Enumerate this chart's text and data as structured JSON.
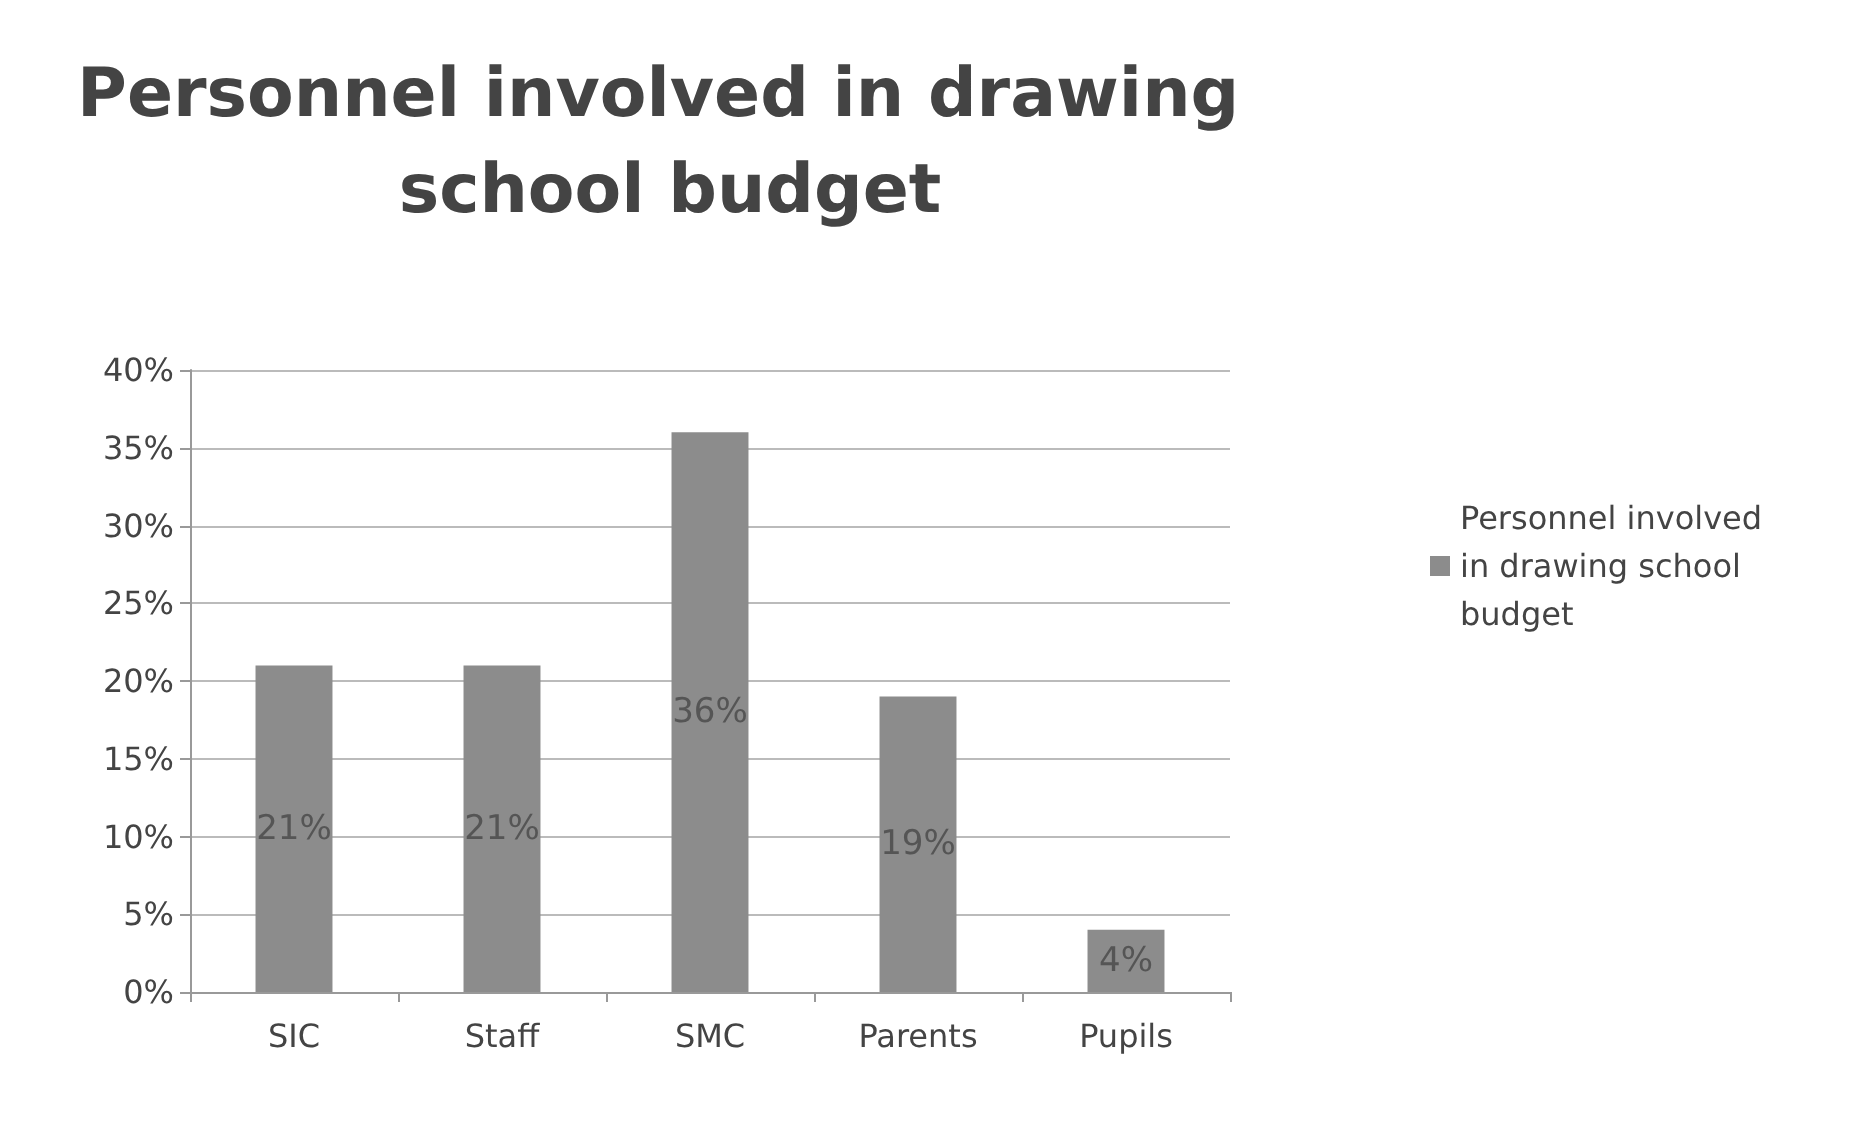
{
  "chart_data": {
    "type": "bar",
    "title": "Personnel involved in drawing school budget",
    "categories": [
      "SIC",
      "Staff",
      "SMC",
      "Parents",
      "Pupils"
    ],
    "series": [
      {
        "name": "Personnel involved in drawing school budget",
        "color": "#8c8c8c",
        "values": [
          21,
          21,
          36,
          19,
          4
        ],
        "value_labels": [
          "21%",
          "21%",
          "36%",
          "19%",
          "4%"
        ]
      }
    ],
    "ylim": [
      0,
      40
    ],
    "yticks": [
      {
        "value": 0,
        "label": "0%"
      },
      {
        "value": 5,
        "label": "5%"
      },
      {
        "value": 10,
        "label": "10%"
      },
      {
        "value": 15,
        "label": "15%"
      },
      {
        "value": 20,
        "label": "20%"
      },
      {
        "value": 25,
        "label": "25%"
      },
      {
        "value": 30,
        "label": "30%"
      },
      {
        "value": 35,
        "label": "35%"
      },
      {
        "value": 40,
        "label": "40%"
      }
    ],
    "grid": "y",
    "legend": "right"
  }
}
